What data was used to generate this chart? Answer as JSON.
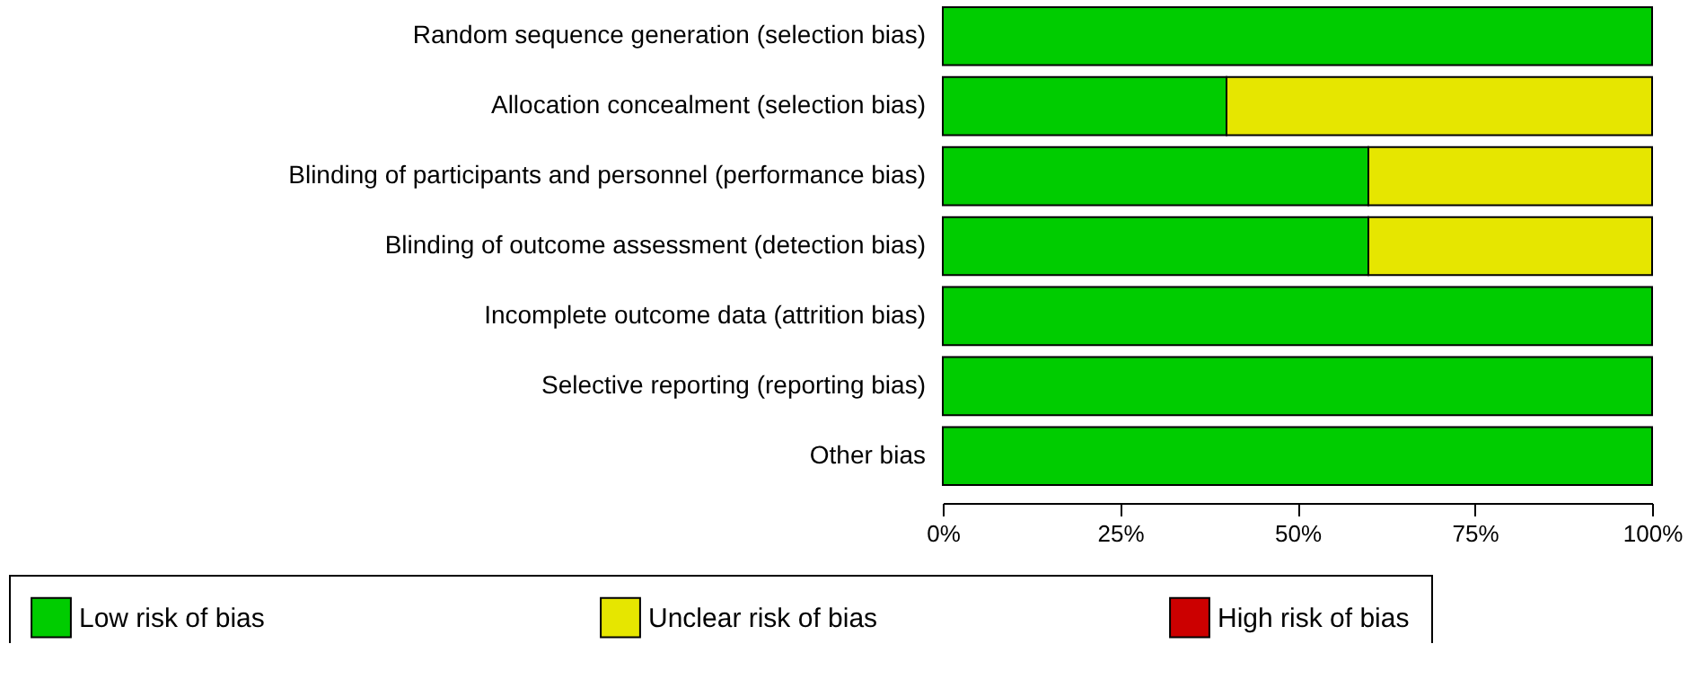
{
  "chart_data": {
    "type": "bar",
    "orientation": "horizontal",
    "stacked": true,
    "categories": [
      "Random sequence generation (selection bias)",
      "Allocation concealment (selection bias)",
      "Blinding of participants and personnel (performance bias)",
      "Blinding of outcome assessment (detection bias)",
      "Incomplete outcome data (attrition bias)",
      "Selective reporting (reporting bias)",
      "Other bias"
    ],
    "series": [
      {
        "name": "Low risk of bias",
        "color": "#00cc00",
        "values": [
          100,
          40,
          60,
          60,
          100,
          100,
          100
        ]
      },
      {
        "name": "Unclear risk of bias",
        "color": "#e6e600",
        "values": [
          0,
          60,
          40,
          40,
          0,
          0,
          0
        ]
      },
      {
        "name": "High risk of bias",
        "color": "#cc0000",
        "values": [
          0,
          0,
          0,
          0,
          0,
          0,
          0
        ]
      }
    ],
    "xlim": [
      0,
      100
    ],
    "xticks": [
      {
        "value": 0,
        "label": "0%"
      },
      {
        "value": 25,
        "label": "25%"
      },
      {
        "value": 50,
        "label": "50%"
      },
      {
        "value": 75,
        "label": "75%"
      },
      {
        "value": 100,
        "label": "100%"
      }
    ],
    "grid": false,
    "legend": "bottom"
  }
}
